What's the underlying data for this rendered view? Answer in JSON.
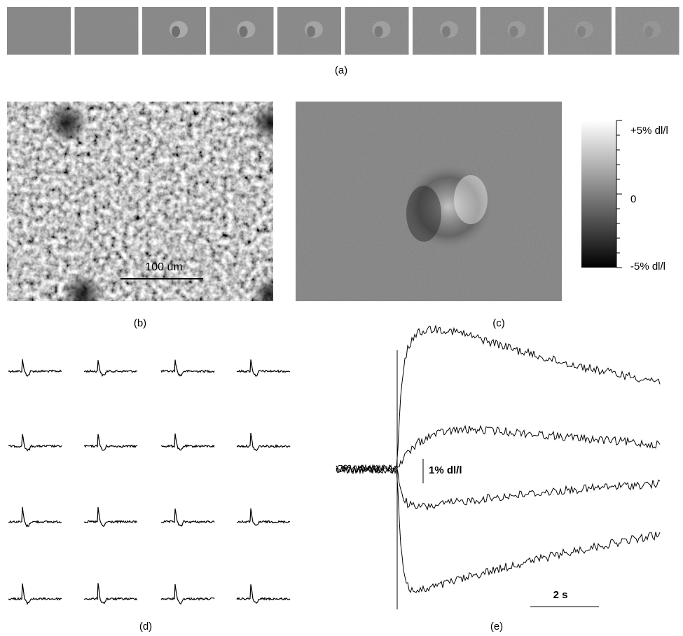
{
  "panel_a": {
    "label": "(a)"
  },
  "panel_b": {
    "label": "(b)",
    "scale_bar": "100 um"
  },
  "panel_c": {
    "label": "(c)",
    "colorbar": {
      "top": "+5% dl/l",
      "middle": "0",
      "bottom": "-5% dl/l"
    }
  },
  "panel_d": {
    "label": "(d)"
  },
  "panel_e": {
    "label": "(e)",
    "amplitude_scale": "1% dl/l",
    "time_scale": "2 s"
  }
}
